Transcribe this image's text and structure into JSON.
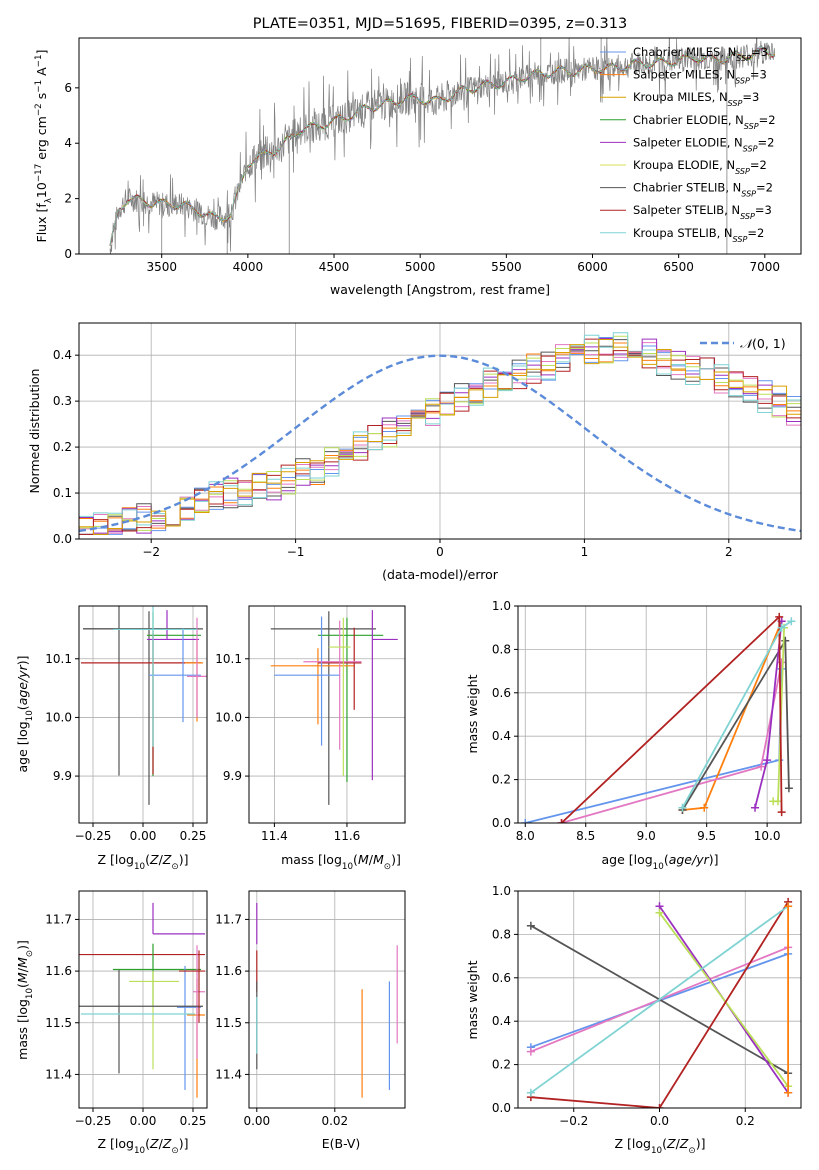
{
  "figure_title": "PLATE=0351, MJD=51695, FIBERID=0395, z=0.313",
  "colors": {
    "chabrier_miles": "#6495ed",
    "salpeter_miles": "#ff7f0e",
    "kroupa_miles": "#d9a000",
    "chabrier_elodie": "#2ca02c",
    "salpeter_elodie": "#9b30c0",
    "kroupa_elodie": "#d4e157",
    "chabrier_stelib": "#555555",
    "salpeter_stelib": "#b22222",
    "kroupa_stelib": "#7fd3d3",
    "pink": "#e377c2",
    "lime": "#bcdf5a",
    "spectrum": "#808080",
    "gauss": "#5b8bd9",
    "grid": "#b0b0b0"
  },
  "chart_data": [
    {
      "id": "spectrum",
      "type": "line",
      "title": "PLATE=0351, MJD=51695, FIBERID=0395, z=0.313",
      "xlabel": "wavelength [Angstrom, rest frame]",
      "ylabel": "Flux [f_λ 10^-17 erg cm^-2 s^-1 A^-1]",
      "xlim": [
        3020,
        7210
      ],
      "ylim": [
        0,
        7.8
      ],
      "x_ticks": [
        3500,
        4000,
        4500,
        5000,
        5500,
        6000,
        6500,
        7000
      ],
      "y_ticks": [
        0,
        2,
        4,
        6
      ],
      "grid": false,
      "legend": "top-right",
      "series": [
        {
          "name": "Chabrier MILES, N_SSP=3",
          "color_key": "chabrier_miles"
        },
        {
          "name": "Salpeter MILES, N_SSP=3",
          "color_key": "salpeter_miles"
        },
        {
          "name": "Kroupa MILES, N_SSP=3",
          "color_key": "kroupa_miles"
        },
        {
          "name": "Chabrier ELODIE, N_SSP=2",
          "color_key": "chabrier_elodie"
        },
        {
          "name": "Salpeter ELODIE, N_SSP=2",
          "color_key": "salpeter_elodie"
        },
        {
          "name": "Kroupa ELODIE, N_SSP=2",
          "color_key": "kroupa_elodie"
        },
        {
          "name": "Chabrier STELIB, N_SSP=2",
          "color_key": "chabrier_stelib"
        },
        {
          "name": "Salpeter STELIB, N_SSP=3",
          "color_key": "salpeter_stelib"
        },
        {
          "name": "Kroupa STELIB, N_SSP=2",
          "color_key": "kroupa_stelib"
        }
      ],
      "continuum": {
        "x": [
          3200,
          3250,
          3300,
          3400,
          3500,
          3600,
          3700,
          3800,
          3900,
          4000,
          4100,
          4200,
          4300,
          4400,
          4500,
          4600,
          4700,
          4800,
          4900,
          5000,
          5100,
          5200,
          5300,
          5400,
          5500,
          5600,
          5700,
          5800,
          5900,
          6000,
          6100,
          6200,
          6300,
          6400,
          6500,
          6600,
          6700,
          6800,
          6900,
          7000,
          7060
        ],
        "y": [
          0.2,
          1.6,
          2.0,
          1.9,
          1.8,
          1.8,
          1.6,
          1.3,
          1.4,
          3.3,
          3.6,
          3.9,
          4.5,
          4.6,
          4.8,
          5.0,
          5.3,
          5.4,
          5.6,
          5.6,
          5.5,
          5.8,
          6.0,
          6.1,
          6.2,
          6.4,
          6.5,
          6.6,
          6.6,
          6.7,
          6.7,
          6.8,
          6.9,
          6.9,
          7.0,
          7.1,
          7.0,
          7.1,
          7.2,
          7.3,
          7.3
        ]
      }
    },
    {
      "id": "residuals",
      "type": "bar",
      "xlabel": "(data-model)/error",
      "ylabel": "Normed distribution",
      "xlim": [
        -2.5,
        2.5
      ],
      "ylim": [
        0,
        0.47
      ],
      "x_ticks": [
        -2,
        -1,
        0,
        1,
        2
      ],
      "y_ticks": [
        0.0,
        0.1,
        0.2,
        0.3,
        0.4
      ],
      "grid": true,
      "legend": "top-right",
      "reference": {
        "name": "𝒩(0,1)",
        "mean": 0,
        "sigma": 1
      },
      "bin_width": 0.1,
      "histogram_base": {
        "x_start": -2.5,
        "values": [
          0.02,
          0.025,
          0.03,
          0.04,
          0.045,
          0.05,
          0.06,
          0.07,
          0.08,
          0.09,
          0.1,
          0.1,
          0.12,
          0.12,
          0.13,
          0.14,
          0.15,
          0.17,
          0.19,
          0.2,
          0.22,
          0.23,
          0.25,
          0.26,
          0.28,
          0.3,
          0.31,
          0.32,
          0.34,
          0.35,
          0.36,
          0.37,
          0.38,
          0.39,
          0.4,
          0.41,
          0.41,
          0.42,
          0.41,
          0.4,
          0.39,
          0.38,
          0.37,
          0.36,
          0.35,
          0.34,
          0.33,
          0.31,
          0.3,
          0.28
        ]
      }
    },
    {
      "id": "age_vs_Z",
      "type": "scatter",
      "xlabel": "Z [log10(Z/Z⊙)]",
      "ylabel": "age [log10(age/yr)]",
      "xlim": [
        -0.32,
        0.32
      ],
      "ylim": [
        9.82,
        10.19
      ],
      "x_ticks": [
        -0.25,
        0.0,
        0.25
      ],
      "y_ticks": [
        9.9,
        10.0,
        10.1
      ],
      "grid": true
    },
    {
      "id": "age_vs_mass",
      "type": "scatter",
      "xlabel": "mass [log10(M/M⊙)]",
      "ylabel": "",
      "xlim": [
        11.33,
        11.76
      ],
      "ylim": [
        9.82,
        10.19
      ],
      "x_ticks": [
        11.4,
        11.6
      ],
      "y_ticks": [
        9.9,
        10.0,
        10.1
      ],
      "grid": true
    },
    {
      "id": "weight_vs_age",
      "type": "line",
      "xlabel": "age [log10(age/yr)]",
      "ylabel": "mass weight",
      "xlim": [
        7.94,
        10.28
      ],
      "ylim": [
        0,
        1
      ],
      "x_ticks": [
        8.0,
        8.5,
        9.0,
        9.5,
        10.0
      ],
      "y_ticks": [
        0.0,
        0.2,
        0.4,
        0.6,
        0.8,
        1.0
      ],
      "grid": true,
      "series": [
        {
          "color_key": "chabrier_miles",
          "x": [
            8.0,
            10.1,
            10.12
          ],
          "y": [
            0.0,
            0.29,
            0.71
          ]
        },
        {
          "color_key": "salpeter_miles",
          "x": [
            9.3,
            9.48,
            10.12
          ],
          "y": [
            0.06,
            0.07,
            0.93
          ]
        },
        {
          "color_key": "pink",
          "x": [
            8.3,
            9.95,
            10.12
          ],
          "y": [
            0.0,
            0.26,
            0.74
          ]
        },
        {
          "color_key": "chabrier_stelib",
          "x": [
            9.3,
            10.15,
            10.18
          ],
          "y": [
            0.06,
            0.84,
            0.16
          ]
        },
        {
          "color_key": "salpeter_elodie",
          "x": [
            9.9,
            10.0,
            10.12
          ],
          "y": [
            0.07,
            0.29,
            0.93
          ]
        },
        {
          "color_key": "lime",
          "x": [
            10.05,
            10.09,
            10.14
          ],
          "y": [
            0.1,
            0.1,
            0.9
          ]
        },
        {
          "color_key": "salpeter_stelib",
          "x": [
            8.3,
            10.1,
            10.12
          ],
          "y": [
            0.0,
            0.95,
            0.05
          ]
        },
        {
          "color_key": "kroupa_stelib",
          "x": [
            9.3,
            10.12,
            10.2
          ],
          "y": [
            0.07,
            0.9,
            0.93
          ]
        }
      ]
    },
    {
      "id": "mass_vs_Z",
      "type": "scatter",
      "xlabel": "Z [log10(Z/Z⊙)]",
      "ylabel": "mass [log10(M/M⊙)]",
      "xlim": [
        -0.32,
        0.32
      ],
      "ylim": [
        11.335,
        11.755
      ],
      "x_ticks": [
        -0.25,
        0.0,
        0.25
      ],
      "y_ticks": [
        11.4,
        11.5,
        11.6,
        11.7
      ],
      "grid": true
    },
    {
      "id": "mass_vs_ebv",
      "type": "scatter",
      "xlabel": "E(B-V)",
      "ylabel": "",
      "xlim": [
        -0.002,
        0.038
      ],
      "ylim": [
        11.335,
        11.755
      ],
      "x_ticks": [
        0.0,
        0.02
      ],
      "y_ticks": [
        11.4,
        11.5,
        11.6,
        11.7
      ],
      "grid": true
    },
    {
      "id": "weight_vs_Z",
      "type": "line",
      "xlabel": "Z [log10(Z/Z⊙)]",
      "ylabel": "mass weight",
      "xlim": [
        -0.33,
        0.33
      ],
      "ylim": [
        0,
        1
      ],
      "x_ticks": [
        -0.2,
        0.0,
        0.2
      ],
      "y_ticks": [
        0.0,
        0.2,
        0.4,
        0.6,
        0.8,
        1.0
      ],
      "grid": true,
      "series": [
        {
          "color_key": "chabrier_miles",
          "x": [
            -0.3,
            0.3
          ],
          "y": [
            0.28,
            0.71
          ]
        },
        {
          "color_key": "pink",
          "x": [
            -0.3,
            0.3
          ],
          "y": [
            0.26,
            0.74
          ]
        },
        {
          "color_key": "chabrier_stelib",
          "x": [
            -0.3,
            0.3
          ],
          "y": [
            0.84,
            0.16
          ]
        },
        {
          "color_key": "salpeter_elodie",
          "x": [
            0.0,
            0.3
          ],
          "y": [
            0.93,
            0.07
          ]
        },
        {
          "color_key": "lime",
          "x": [
            0.0,
            0.3
          ],
          "y": [
            0.9,
            0.1
          ]
        },
        {
          "color_key": "salpeter_stelib",
          "x": [
            -0.3,
            0.0,
            0.3
          ],
          "y": [
            0.05,
            0.0,
            0.95
          ]
        },
        {
          "color_key": "kroupa_stelib",
          "x": [
            -0.3,
            0.3
          ],
          "y": [
            0.07,
            0.93
          ]
        },
        {
          "color_key": "salpeter_miles",
          "x": [
            0.3,
            0.3
          ],
          "y": [
            0.07,
            0.93
          ]
        }
      ]
    }
  ]
}
